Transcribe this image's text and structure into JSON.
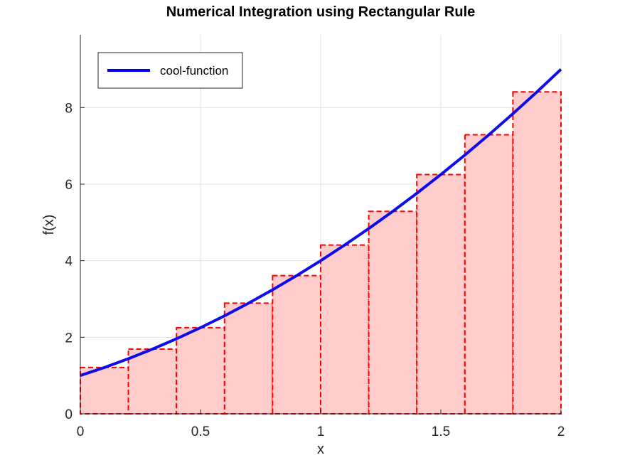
{
  "chart_data": {
    "type": "bar",
    "title": "Numerical Integration using Rectangular Rule",
    "xlabel": "x",
    "ylabel": "f(x)",
    "xlim": [
      0,
      2
    ],
    "ylim": [
      0,
      9.9
    ],
    "xticks": [
      0,
      0.5,
      1,
      1.5,
      2
    ],
    "xtick_labels": [
      "0",
      "0.5",
      "1",
      "1.5",
      "2"
    ],
    "yticks": [
      0,
      2,
      4,
      6,
      8
    ],
    "ytick_labels": [
      "0",
      "2",
      "4",
      "6",
      "8"
    ],
    "grid": true,
    "legend_position": "top-left",
    "series": [
      {
        "name": "cool-function",
        "type": "line",
        "color": "#0000ee",
        "function": "(x+1)^2",
        "x": [
          0,
          0.1,
          0.2,
          0.3,
          0.4,
          0.5,
          0.6,
          0.7,
          0.8,
          0.9,
          1.0,
          1.1,
          1.2,
          1.3,
          1.4,
          1.5,
          1.6,
          1.7,
          1.8,
          1.9,
          2.0
        ],
        "y": [
          1.0,
          1.21,
          1.44,
          1.69,
          1.96,
          2.25,
          2.56,
          2.89,
          3.24,
          3.61,
          4.0,
          4.41,
          4.84,
          5.29,
          5.76,
          6.25,
          6.76,
          7.29,
          7.84,
          8.41,
          9.0
        ]
      },
      {
        "type": "rectangles",
        "edge_color": "#ff0000",
        "fill_color": "#ffcccc",
        "bin_edges": [
          0,
          0.2,
          0.4,
          0.6,
          0.8,
          1.0,
          1.2,
          1.4,
          1.6,
          1.8,
          2.0
        ],
        "values": [
          1.21,
          1.69,
          2.25,
          2.89,
          3.61,
          4.41,
          5.29,
          6.25,
          7.29,
          8.41
        ]
      }
    ]
  }
}
